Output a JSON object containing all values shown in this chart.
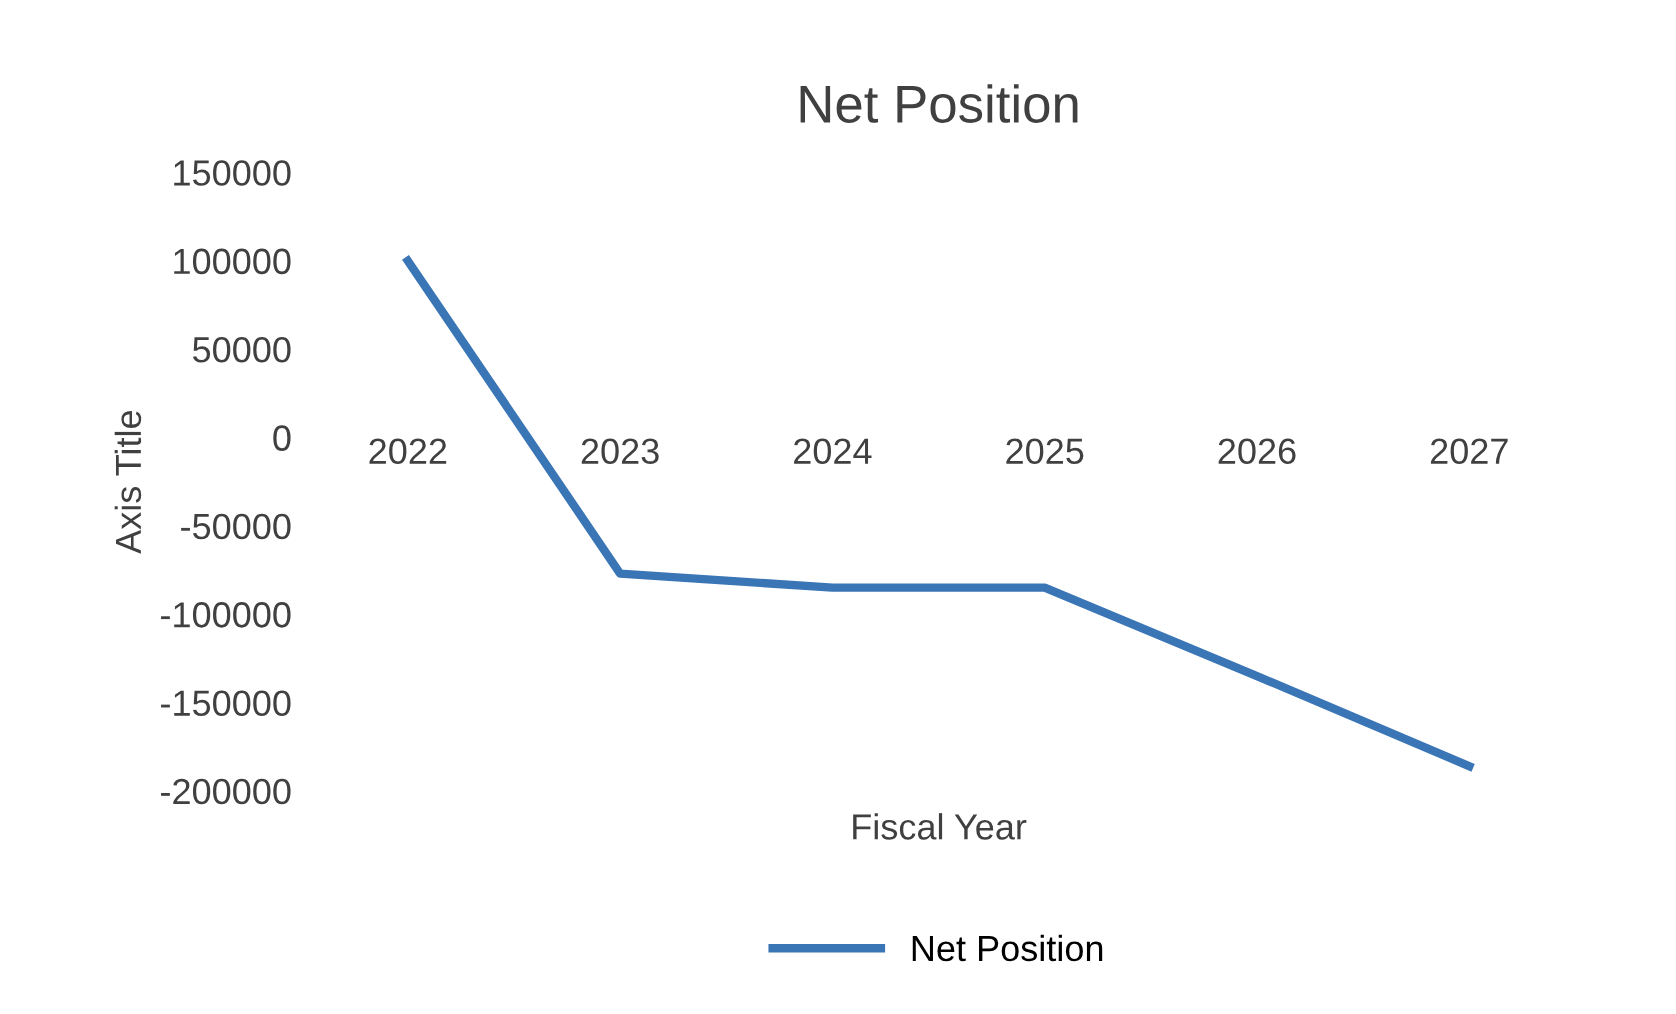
{
  "chart_data": {
    "type": "line",
    "title": "Net Position",
    "xlabel": "Fiscal Year",
    "ylabel": "Axis Title",
    "categories": [
      "2022",
      "2023",
      "2024",
      "2025",
      "2026",
      "2027"
    ],
    "series": [
      {
        "name": "Net Position",
        "color": "#3a75b5",
        "values": [
          100000,
          -77000,
          -85000,
          -85000,
          -135000,
          -186000
        ]
      }
    ],
    "ylim": [
      -200000,
      150000
    ],
    "yticks": [
      -200000,
      -150000,
      -100000,
      -50000,
      0,
      50000,
      100000,
      150000
    ],
    "grid": false,
    "legend": "bottom",
    "marker": "none",
    "line_style": "solid"
  }
}
